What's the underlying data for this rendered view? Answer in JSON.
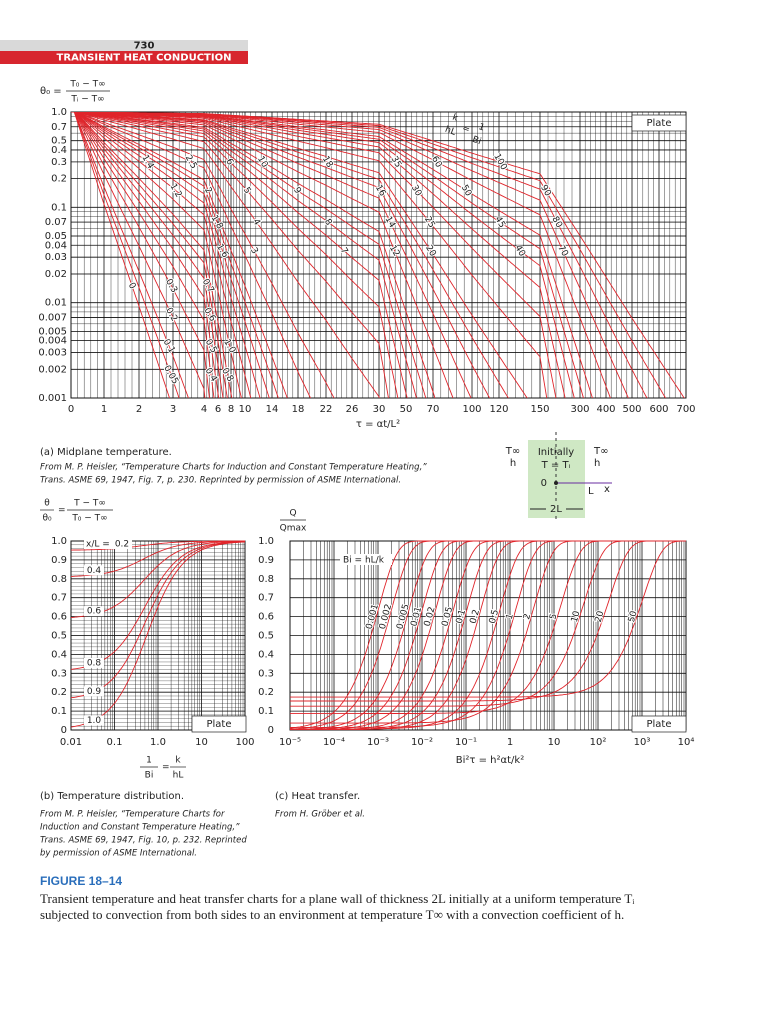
{
  "header": {
    "page_number": "730",
    "section": "TRANSIENT HEAT CONDUCTION"
  },
  "chart_a": {
    "type": "line",
    "color": "#e0252b",
    "ylabel": {
      "lhs": "θ₀ =",
      "num": "T₀ − T∞",
      "den": "Tᵢ − T∞"
    },
    "xlabel": "τ = αt/L²",
    "xlim": [
      0,
      700
    ],
    "xticks": [
      0,
      1,
      2,
      3,
      4,
      6,
      8,
      10,
      14,
      18,
      22,
      26,
      30,
      50,
      70,
      100,
      120,
      150,
      300,
      400,
      500,
      600,
      700
    ],
    "ylim": [
      0.001,
      1
    ],
    "log_y": true,
    "yticks": [
      {
        "value": 1,
        "label": "1.0"
      },
      0.7,
      0.5,
      0.4,
      0.3,
      0.2,
      0.1,
      0.07,
      0.05,
      0.04,
      0.03,
      0.02,
      0.01,
      0.007,
      0.005,
      0.004,
      0.003,
      0.002,
      0.001
    ],
    "curve_title": {
      "num": "k",
      "den": "hL",
      "eq": "=",
      "num2": "1",
      "den2": "Bi"
    },
    "curves": [
      100,
      90,
      80,
      70,
      60,
      50,
      45,
      40,
      35,
      30,
      25,
      20,
      18,
      16,
      14,
      12,
      10,
      9,
      8,
      7,
      6,
      5,
      4,
      3,
      2.5,
      2,
      1.8,
      1.6,
      1.4,
      1.2,
      {
        "value": 1,
        "label": "1.0"
      },
      0.8,
      0.7,
      0.6,
      0.5,
      0.4,
      0.3,
      0.2,
      0.1,
      0.05,
      0
    ],
    "legend": "Plate",
    "caption": "(a) Midplane temperature.",
    "source": [
      "From M. P. Heisler, “Temperature Charts for Induction and Constant Temperature Heating,”",
      "Trans. ASME 69, 1947, Fig. 7, p. 230. Reprinted by permission of ASME International."
    ]
  },
  "inset": {
    "left_temp": "T∞",
    "left_coef": "h",
    "right_temp": "T∞",
    "right_coef": "h",
    "initial": "Initially",
    "initial_temp": "T = Tᵢ",
    "origin": "0",
    "length": "L",
    "axis": "x",
    "thickness": "2L"
  },
  "chart_b": {
    "type": "line",
    "color": "#e0252b",
    "ylabel": {
      "num1": "θ",
      "den1": "θ₀",
      "eq": "=",
      "num": "T − T∞",
      "den": "T₀ − T∞"
    },
    "xlabel": {
      "num1": "1",
      "den1": "Bi",
      "eq": "=",
      "num2": "k",
      "den2": "hL"
    },
    "xlim": [
      0.01,
      100
    ],
    "log_x": true,
    "xticks": [
      0.01,
      0.1,
      {
        "value": 1,
        "label": "1.0"
      },
      10,
      100
    ],
    "ylim": [
      0,
      1
    ],
    "yticks": [
      0,
      0.1,
      0.2,
      0.3,
      0.4,
      0.5,
      0.6,
      0.7,
      0.8,
      0.9,
      {
        "value": 1,
        "label": "1.0"
      }
    ],
    "curve_param": "x/L =",
    "curves": [
      0.2,
      0.4,
      0.6,
      0.8,
      0.9,
      {
        "value": 1,
        "label": "1.0"
      }
    ],
    "legend": "Plate",
    "caption": "(b) Temperature distribution.",
    "source": [
      "From M. P. Heisler, “Temperature Charts for",
      "Induction and Constant Temperature Heating,”",
      "Trans. ASME 69, 1947, Fig. 10, p. 232. Reprinted",
      "by permission of ASME International."
    ]
  },
  "chart_c": {
    "type": "line",
    "color": "#e0252b",
    "ylabel": {
      "num": "Q",
      "den": "Qmax"
    },
    "xlabel": "Bi²τ = h²αt/k²",
    "xlim": [
      1e-05,
      10000
    ],
    "log_x": true,
    "xticks": [
      {
        "value": 1e-05,
        "label": "10⁻⁵"
      },
      {
        "value": 0.0001,
        "label": "10⁻⁴"
      },
      {
        "value": 0.001,
        "label": "10⁻³"
      },
      {
        "value": 0.01,
        "label": "10⁻²"
      },
      {
        "value": 0.1,
        "label": "10⁻¹"
      },
      1,
      10,
      {
        "value": 100,
        "label": "10²"
      },
      {
        "value": 1000,
        "label": "10³"
      },
      {
        "value": 10000,
        "label": "10⁴"
      }
    ],
    "ylim": [
      0,
      1
    ],
    "yticks": [
      0,
      0.1,
      0.2,
      0.3,
      0.4,
      0.5,
      0.6,
      0.7,
      0.8,
      0.9,
      {
        "value": 1,
        "label": "1.0"
      }
    ],
    "curve_param": "Bi = hL/k",
    "curves": [
      0.001,
      0.002,
      0.005,
      0.01,
      0.02,
      0.05,
      0.1,
      0.2,
      0.5,
      1,
      2,
      5,
      10,
      20,
      50
    ],
    "legend": "Plate",
    "caption": "(c) Heat transfer.",
    "source": [
      "From H. Gröber et al."
    ]
  },
  "figure": {
    "label": "FIGURE 18–14",
    "text": [
      "Transient temperature and heat transfer charts for a plane wall of thickness 2L initially at a uniform temperature Tᵢ",
      "subjected to convection from both sides to an environment at temperature T∞ with a convection coefficient of h."
    ]
  }
}
